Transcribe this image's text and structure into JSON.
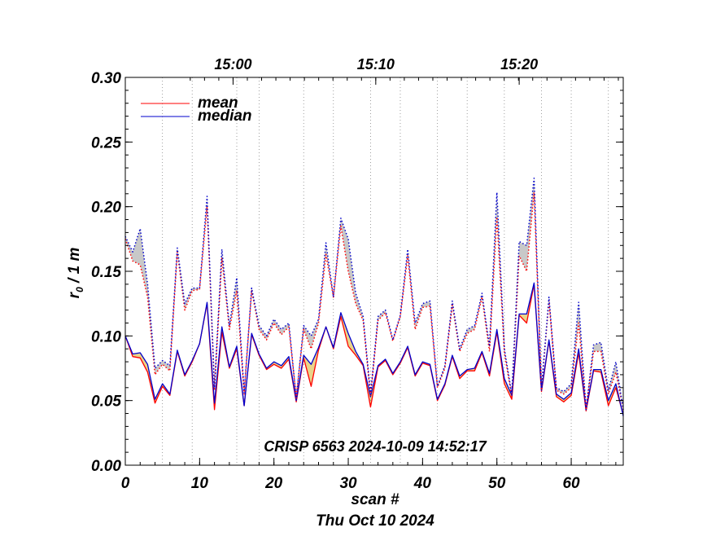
{
  "chart_data": {
    "type": "line",
    "xlabel": "scan #",
    "ylabel": "r₀ / 1 m",
    "ylabel_main": "r",
    "ylabel_sub": "0",
    "ylabel_rest": " / 1 m",
    "date_label": "Thu Oct 10 2024",
    "annotation": "CRISP 6563 2024-10-09 14:52:17",
    "xlim": [
      0,
      67
    ],
    "ylim": [
      0,
      0.3
    ],
    "x_ticks": [
      0,
      10,
      20,
      30,
      40,
      50,
      60
    ],
    "x_tick_labels": [
      "0",
      "10",
      "20",
      "30",
      "40",
      "50",
      "60"
    ],
    "y_ticks": [
      0.0,
      0.05,
      0.1,
      0.15,
      0.2,
      0.25,
      0.3
    ],
    "y_tick_labels": [
      "0.00",
      "0.05",
      "0.10",
      "0.15",
      "0.20",
      "0.25",
      "0.30"
    ],
    "time_ticks": [
      {
        "scan": 14.5,
        "label": "15:00"
      },
      {
        "scan": 33.7,
        "label": "15:10"
      },
      {
        "scan": 53.0,
        "label": "15:20"
      }
    ],
    "scan_grid_positions": [
      5,
      9,
      15,
      18,
      24,
      28,
      33,
      37,
      42,
      46,
      51,
      56,
      60,
      65
    ],
    "legend": [
      {
        "name": "mean",
        "color": "#ff0000"
      },
      {
        "name": "median",
        "color": "#0000cc"
      }
    ],
    "series": [
      {
        "name": "mean",
        "style": "solid",
        "color": "#ff0000",
        "values": [
          0.1,
          0.084,
          0.083,
          0.072,
          0.048,
          0.061,
          0.054,
          0.088,
          0.069,
          0.08,
          0.094,
          0.125,
          0.043,
          0.103,
          0.075,
          0.09,
          0.046,
          0.101,
          0.085,
          0.074,
          0.078,
          0.075,
          0.082,
          0.049,
          0.083,
          0.061,
          0.089,
          0.107,
          0.09,
          0.115,
          0.092,
          0.085,
          0.077,
          0.045,
          0.076,
          0.081,
          0.07,
          0.079,
          0.091,
          0.069,
          0.079,
          0.077,
          0.05,
          0.062,
          0.084,
          0.067,
          0.073,
          0.073,
          0.087,
          0.069,
          0.103,
          0.063,
          0.051,
          0.116,
          0.11,
          0.14,
          0.057,
          0.096,
          0.053,
          0.049,
          0.054,
          0.087,
          0.042,
          0.073,
          0.072,
          0.046,
          0.06,
          0.039
        ]
      },
      {
        "name": "median",
        "style": "solid",
        "color": "#0000cc",
        "values": [
          0.1,
          0.086,
          0.087,
          0.078,
          0.051,
          0.063,
          0.055,
          0.089,
          0.07,
          0.081,
          0.094,
          0.126,
          0.048,
          0.107,
          0.076,
          0.092,
          0.046,
          0.102,
          0.086,
          0.075,
          0.08,
          0.077,
          0.084,
          0.05,
          0.085,
          0.078,
          0.091,
          0.107,
          0.091,
          0.118,
          0.102,
          0.088,
          0.078,
          0.053,
          0.077,
          0.082,
          0.071,
          0.08,
          0.092,
          0.07,
          0.08,
          0.078,
          0.051,
          0.063,
          0.085,
          0.069,
          0.074,
          0.075,
          0.088,
          0.071,
          0.105,
          0.067,
          0.054,
          0.117,
          0.117,
          0.141,
          0.058,
          0.097,
          0.055,
          0.051,
          0.056,
          0.09,
          0.043,
          0.074,
          0.074,
          0.05,
          0.063,
          0.038
        ]
      },
      {
        "name": "mean (upper)",
        "style": "dotted",
        "color": "#ff0000",
        "values": [
          0.175,
          0.158,
          0.155,
          0.13,
          0.07,
          0.078,
          0.073,
          0.165,
          0.12,
          0.135,
          0.136,
          0.2,
          0.058,
          0.16,
          0.105,
          0.135,
          0.055,
          0.135,
          0.105,
          0.097,
          0.11,
          0.101,
          0.107,
          0.052,
          0.105,
          0.09,
          0.11,
          0.163,
          0.13,
          0.185,
          0.15,
          0.125,
          0.112,
          0.053,
          0.112,
          0.118,
          0.096,
          0.115,
          0.162,
          0.105,
          0.122,
          0.123,
          0.06,
          0.075,
          0.124,
          0.088,
          0.102,
          0.105,
          0.13,
          0.088,
          0.192,
          0.087,
          0.053,
          0.162,
          0.15,
          0.211,
          0.058,
          0.127,
          0.058,
          0.055,
          0.06,
          0.11,
          0.043,
          0.088,
          0.088,
          0.055,
          0.072,
          0.043
        ]
      },
      {
        "name": "median (upper)",
        "style": "dotted",
        "color": "#0000cc",
        "values": [
          0.177,
          0.165,
          0.183,
          0.14,
          0.075,
          0.081,
          0.077,
          0.168,
          0.125,
          0.137,
          0.137,
          0.208,
          0.06,
          0.167,
          0.108,
          0.145,
          0.056,
          0.137,
          0.108,
          0.1,
          0.113,
          0.105,
          0.11,
          0.052,
          0.108,
          0.1,
          0.113,
          0.172,
          0.13,
          0.191,
          0.175,
          0.133,
          0.115,
          0.055,
          0.115,
          0.12,
          0.097,
          0.116,
          0.167,
          0.11,
          0.125,
          0.127,
          0.061,
          0.077,
          0.127,
          0.09,
          0.105,
          0.108,
          0.133,
          0.092,
          0.211,
          0.09,
          0.055,
          0.173,
          0.17,
          0.222,
          0.06,
          0.13,
          0.06,
          0.057,
          0.063,
          0.126,
          0.043,
          0.093,
          0.095,
          0.058,
          0.08,
          0.043
        ]
      }
    ],
    "fills": [
      {
        "between": [
          "mean",
          "median"
        ],
        "color": "#e8d48a"
      },
      {
        "between": [
          "mean (upper)",
          "median (upper)"
        ],
        "color": "#c8c8c8"
      }
    ]
  }
}
